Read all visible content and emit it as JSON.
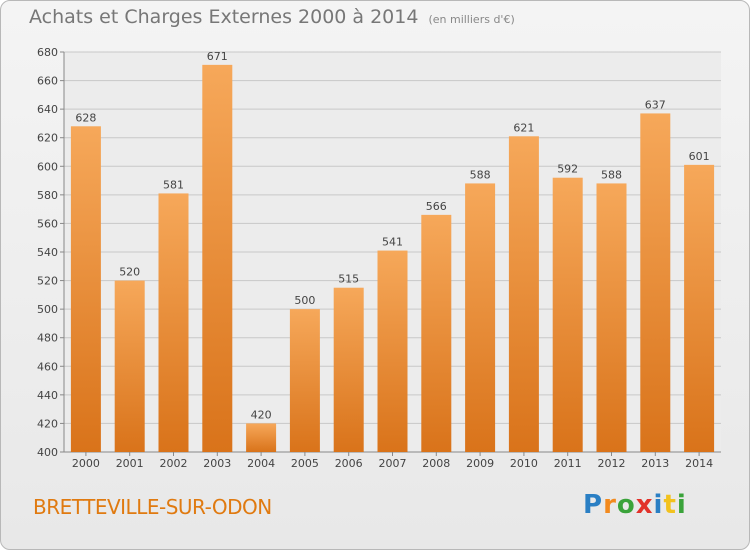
{
  "header": {
    "title": "Achats et Charges Externes 2000 à 2014",
    "subtitle": "(en milliers d'€)"
  },
  "footer": {
    "commune": "BRETTEVILLE-SUR-ODON",
    "brand": "Proxiti",
    "brand_letters": [
      {
        "ch": "P",
        "color": "#2a7fc4"
      },
      {
        "ch": "r",
        "color": "#f28a1e"
      },
      {
        "ch": "o",
        "color": "#3aa33a"
      },
      {
        "ch": "x",
        "color": "#e2322a"
      },
      {
        "ch": "i",
        "color": "#2a7fc4"
      },
      {
        "ch": "t",
        "color": "#f2c21e"
      },
      {
        "ch": "i",
        "color": "#3aa33a"
      }
    ]
  },
  "colors": {
    "bar_light": "#f6a85a",
    "bar_dark": "#d9731a",
    "grid": "#c8c8c8",
    "text": "#444444",
    "commune": "#e07a10"
  },
  "chart_data": {
    "type": "bar",
    "title": "Achats et Charges Externes 2000 à 2014",
    "subtitle": "(en milliers d'€)",
    "categories": [
      "2000",
      "2001",
      "2002",
      "2003",
      "2004",
      "2005",
      "2006",
      "2007",
      "2008",
      "2009",
      "2010",
      "2011",
      "2012",
      "2013",
      "2014"
    ],
    "values": [
      628,
      520,
      581,
      671,
      420,
      500,
      515,
      541,
      566,
      588,
      621,
      592,
      588,
      637,
      601
    ],
    "ylim": [
      400,
      680
    ],
    "yticks": [
      400,
      420,
      440,
      460,
      480,
      500,
      520,
      540,
      560,
      580,
      600,
      620,
      640,
      660,
      680
    ],
    "grid": true,
    "xlabel": "",
    "ylabel": ""
  }
}
